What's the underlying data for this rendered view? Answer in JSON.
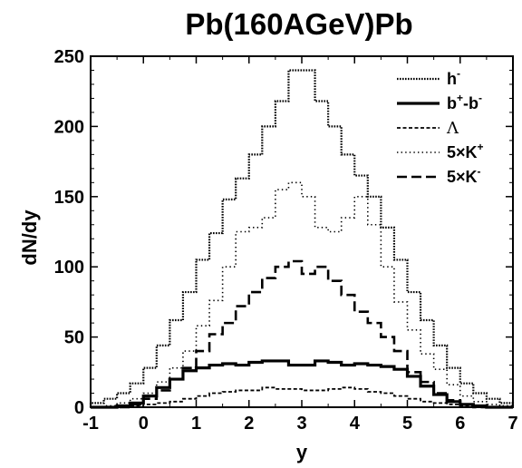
{
  "chart_data": {
    "type": "line",
    "step": true,
    "title": "Pb(160AGeV)Pb",
    "xlabel": "y",
    "ylabel": "dN/dy",
    "xlim": [
      -1,
      7
    ],
    "ylim": [
      0,
      250
    ],
    "xticks": [
      "-1",
      "0",
      "1",
      "2",
      "3",
      "4",
      "5",
      "6",
      "7"
    ],
    "yticks": [
      "0",
      "50",
      "100",
      "150",
      "200",
      "250"
    ],
    "grid": false,
    "legend_position": "top-right",
    "x": [
      -1.0,
      -0.75,
      -0.5,
      -0.25,
      0.0,
      0.25,
      0.5,
      0.75,
      1.0,
      1.25,
      1.5,
      1.75,
      2.0,
      2.25,
      2.5,
      2.75,
      3.0,
      3.25,
      3.5,
      3.75,
      4.0,
      4.25,
      4.5,
      4.75,
      5.0,
      5.25,
      5.5,
      5.75,
      6.0,
      6.25,
      6.5,
      6.75
    ],
    "series": [
      {
        "name": "h",
        "name_sup": "-",
        "style": "dotted-dense",
        "values": [
          3,
          6,
          10,
          17,
          28,
          44,
          62,
          82,
          105,
          124,
          148,
          163,
          180,
          200,
          218,
          240,
          240,
          218,
          200,
          180,
          165,
          150,
          128,
          105,
          82,
          62,
          44,
          28,
          17,
          10,
          6,
          3
        ]
      },
      {
        "name": "b+-b-",
        "style": "solid-thick",
        "values": [
          0,
          0,
          1,
          3,
          8,
          14,
          20,
          26,
          28,
          30,
          31,
          30,
          32,
          33,
          33,
          30,
          30,
          33,
          32,
          30,
          31,
          30,
          29,
          27,
          22,
          15,
          9,
          4,
          2,
          1,
          0,
          0
        ]
      },
      {
        "name": "Λ",
        "style": "dashed-short",
        "values": [
          0,
          0,
          0,
          1,
          2,
          3,
          4,
          6,
          8,
          10,
          11,
          12,
          12,
          14,
          13,
          13,
          12,
          12,
          13,
          14,
          13,
          11,
          10,
          8,
          6,
          4,
          3,
          2,
          1,
          0,
          0,
          0
        ]
      },
      {
        "name": "5×K+",
        "style": "dotted-sparse",
        "values": [
          0,
          1,
          3,
          6,
          10,
          18,
          28,
          40,
          58,
          76,
          100,
          125,
          128,
          135,
          155,
          160,
          150,
          128,
          125,
          135,
          150,
          130,
          100,
          75,
          55,
          38,
          27,
          16,
          8,
          4,
          2,
          1
        ]
      },
      {
        "name": "5×K-",
        "style": "dashed-long",
        "values": [
          0,
          0,
          0,
          2,
          6,
          12,
          20,
          28,
          40,
          52,
          60,
          72,
          82,
          92,
          100,
          104,
          95,
          100,
          90,
          80,
          68,
          60,
          50,
          40,
          25,
          18,
          10,
          5,
          2,
          0,
          0,
          0
        ]
      }
    ],
    "legend": [
      {
        "base": "h",
        "sup": "-",
        "style": "dotted-dense"
      },
      {
        "base": "b",
        "sup": "+",
        "mid": "-b",
        "sup2": "-",
        "style": "solid-thick"
      },
      {
        "base": "Λ",
        "style": "dashed-short",
        "lambda": true
      },
      {
        "base": "5×K",
        "sup": "+",
        "style": "dotted-sparse"
      },
      {
        "base": "5×K",
        "sup": "-",
        "style": "dashed-long"
      }
    ]
  }
}
